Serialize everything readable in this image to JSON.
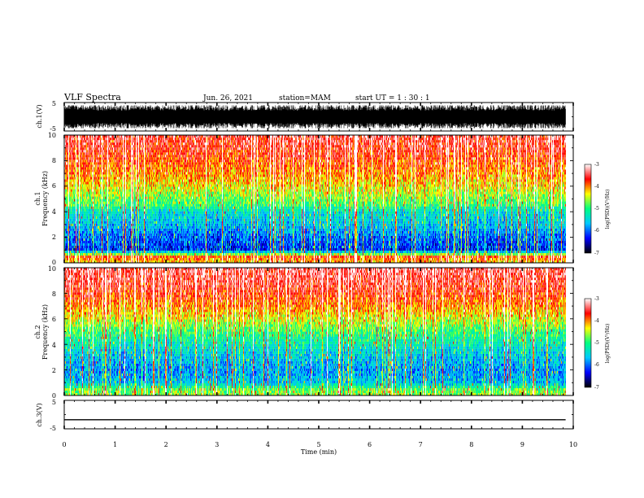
{
  "header": {
    "title": "VLF Spectra",
    "date": "Jun. 26, 2021",
    "station": "station=MAM",
    "start": "start  UT =   1 : 30 : 1"
  },
  "x_axis": {
    "label": "Time  (min)",
    "ticks": [
      "0",
      "1",
      "2",
      "3",
      "4",
      "5",
      "6",
      "7",
      "8",
      "9",
      "10"
    ]
  },
  "panels": {
    "ch1_wave": {
      "ylabel": "ch.1(V)",
      "ticks": [
        "5",
        "-5"
      ]
    },
    "ch1_spec": {
      "ylabel_1": "ch.1",
      "ylabel_2": "Frequency  (kHz)",
      "ticks": [
        "0",
        "2",
        "4",
        "6",
        "8",
        "10"
      ]
    },
    "ch2_spec": {
      "ylabel_1": "ch.2",
      "ylabel_2": "Frequency  (kHz)",
      "ticks": [
        "0",
        "2",
        "4",
        "6",
        "8",
        "10"
      ]
    },
    "ch3_wave": {
      "ylabel": "ch.3(V)",
      "ticks": [
        "5",
        "-5"
      ]
    }
  },
  "colorbar": {
    "label": "log(PSD)(V²/Hz)",
    "ticks": [
      "-3",
      "-4",
      "-5",
      "-6",
      "-7"
    ],
    "colors": [
      "#000000",
      "#0000ff",
      "#00c8ff",
      "#00ff80",
      "#ffff00",
      "#ff0000",
      "#ffffff"
    ]
  },
  "chart_data": [
    {
      "type": "line",
      "panel": "ch.1 waveform",
      "ylabel": "ch.1(V)",
      "xlim": [
        0,
        10
      ],
      "ylim": [
        -5,
        5
      ],
      "description_values": {
        "approx_amplitude_V": [
          -4,
          4
        ]
      },
      "data_end_min": 9.85
    },
    {
      "type": "heatmap",
      "panel": "ch.1 spectrogram",
      "xlabel": "Time  (min)",
      "ylabel": "Frequency  (kHz)",
      "xlim": [
        0,
        10
      ],
      "ylim": [
        0,
        10
      ],
      "colorbar": {
        "label": "log(PSD)(V²/Hz)",
        "range": [
          -7,
          -3
        ]
      },
      "profile_freq_kHz": [
        0,
        0.5,
        1,
        2,
        3,
        4,
        4.5,
        5,
        6,
        7,
        8,
        9,
        10
      ],
      "profile_logpsd": [
        -4.2,
        -3.8,
        -6.2,
        -6.0,
        -5.6,
        -5.4,
        -4.9,
        -4.7,
        -4.3,
        -4.0,
        -3.8,
        -3.6,
        -3.5
      ],
      "data_end_min": 9.85
    },
    {
      "type": "heatmap",
      "panel": "ch.2 spectrogram",
      "xlabel": "Time  (min)",
      "ylabel": "Frequency  (kHz)",
      "xlim": [
        0,
        10
      ],
      "ylim": [
        0,
        10
      ],
      "colorbar": {
        "label": "log(PSD)(V²/Hz)",
        "range": [
          -7,
          -3
        ]
      },
      "profile_freq_kHz": [
        0,
        0.5,
        1,
        2,
        3,
        4,
        5,
        6,
        7,
        8,
        9,
        10
      ],
      "profile_logpsd": [
        -4.6,
        -4.8,
        -5.6,
        -5.8,
        -5.6,
        -5.3,
        -4.9,
        -4.4,
        -4.0,
        -3.7,
        -3.5,
        -3.4
      ],
      "data_end_min": 9.85
    },
    {
      "type": "line",
      "panel": "ch.3 waveform",
      "ylabel": "ch.3(V)",
      "xlim": [
        0,
        10
      ],
      "ylim": [
        -5,
        5
      ],
      "x": [
        0,
        9.85
      ],
      "y": [
        -1.8,
        -1.8
      ]
    }
  ]
}
